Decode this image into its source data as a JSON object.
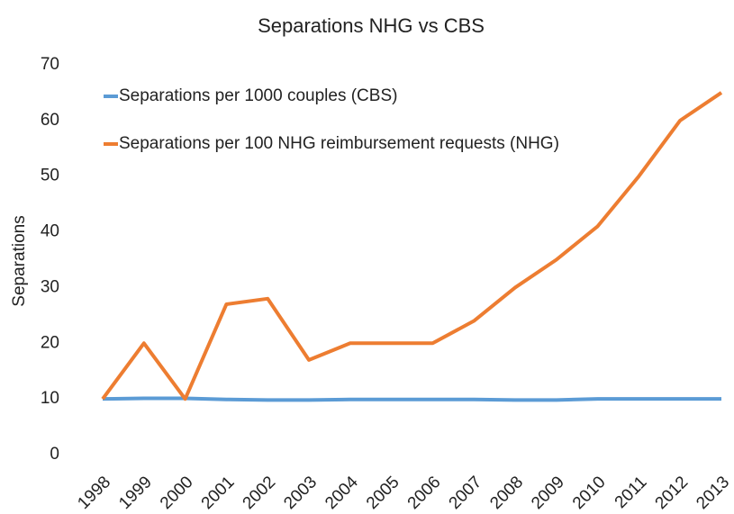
{
  "chart_data": {
    "type": "line",
    "title": "Separations NHG vs CBS",
    "y_label": "Separations",
    "categories": [
      "1998",
      "1999",
      "2000",
      "2001",
      "2002",
      "2003",
      "2004",
      "2005",
      "2006",
      "2007",
      "2008",
      "2009",
      "2010",
      "2011",
      "2012",
      "2013"
    ],
    "series": [
      {
        "name": "Separations per 1000 couples (CBS)",
        "color": "#5b9bd5",
        "values": [
          10,
          10.1,
          10.1,
          9.9,
          9.8,
          9.8,
          9.9,
          9.9,
          9.9,
          9.9,
          9.8,
          9.8,
          10,
          10,
          10,
          10
        ]
      },
      {
        "name": "Separations per 100 NHG reimbursement requests (NHG)",
        "color": "#ed7d31",
        "values": [
          10,
          20,
          10,
          27,
          28,
          17,
          20,
          20,
          20,
          24,
          30,
          35,
          41,
          50,
          60,
          65
        ]
      }
    ],
    "ylim": [
      0,
      70
    ],
    "yticks": [
      0,
      10,
      20,
      30,
      40,
      50,
      60,
      70
    ],
    "grid": false,
    "legend": "upper-left"
  }
}
